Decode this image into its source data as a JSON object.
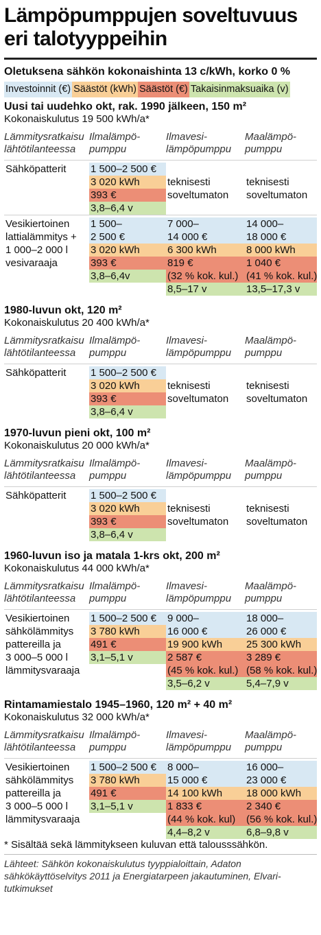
{
  "title": "Lämpöpumppujen soveltuvuus eri talotyyppeihin",
  "subtitle": "Oletuksena sähkön kokonaishinta 13 c/kWh, korko 0 %",
  "legend": [
    "Investoinnit (€)",
    "Säästöt (kWh)",
    "Säästöt (€)",
    "Takaisinmaksuaika (v)"
  ],
  "columns": [
    "Lämmitysratkaisu lähtötilanteessa",
    "Ilmalämpö-pumppu",
    "Ilmavesi-lämpöpumppu",
    "Maalämpö-pumppu"
  ],
  "colors": {
    "investment": "#d8e8f3",
    "savings_kwh": "#f9cf97",
    "savings_eur": "#ec8e76",
    "payback": "#cde4ae"
  },
  "sections": [
    {
      "title": "Uusi tai uudehko okt, rak. 1990 jälkeen, 150 m²",
      "consumption": "Kokonaiskulutus 19 500 kWh/a*",
      "rows": [
        {
          "heating": [
            "Sähköpatterit"
          ],
          "ilp": [
            "1 500–2 500 €",
            "3 020 kWh",
            "393 €",
            "3,8–6,4 v"
          ],
          "ivlp": [
            "",
            "teknisesti",
            "soveltumaton",
            ""
          ],
          "mlp": [
            "",
            "teknisesti",
            "soveltumaton",
            ""
          ]
        },
        {
          "heating": [
            "Vesikiertoinen",
            "lattialämmitys +",
            "1 000–2 000 l",
            "vesivaraaja"
          ],
          "ilp": [
            "1 500–",
            "2 500 €",
            "3 020 kWh",
            "393 €",
            "3,8–6,4v",
            ""
          ],
          "ivlp": [
            "7 000–",
            "14 000 €",
            "6 300 kWh",
            "819 €",
            "(32 % kok. kul.)",
            "8,5–17 v"
          ],
          "mlp": [
            "14 000–",
            "18 000 €",
            "8 000 kWh",
            "1 040 €",
            "(41 % kok. kul.)",
            "13,5–17,3 v"
          ]
        }
      ]
    },
    {
      "title": "1980-luvun okt, 120 m²",
      "consumption": "Kokonaiskulutus 20 400 kWh/a*",
      "rows": [
        {
          "heating": [
            "Sähköpatterit"
          ],
          "ilp": [
            "1 500–2 500 €",
            "3 020 kWh",
            "393 €",
            "3,8–6,4 v"
          ],
          "ivlp": [
            "",
            "teknisesti",
            "soveltumaton",
            ""
          ],
          "mlp": [
            "",
            "teknisesti",
            "soveltumaton",
            ""
          ]
        }
      ]
    },
    {
      "title": "1970-luvun pieni okt, 100 m²",
      "consumption": "Kokonaiskulutus 20 000 kWh/a*",
      "rows": [
        {
          "heating": [
            "Sähköpatterit"
          ],
          "ilp": [
            "1 500–2 500 €",
            "3 020 kWh",
            "393 €",
            "3,8–6,4 v"
          ],
          "ivlp": [
            "",
            "teknisesti",
            "soveltumaton",
            ""
          ],
          "mlp": [
            "",
            "teknisesti",
            "soveltumaton",
            ""
          ]
        }
      ]
    },
    {
      "title": "1960-luvun iso ja matala 1-krs okt, 200 m²",
      "consumption": "Kokonaiskulutus 44 000 kWh/a*",
      "rows": [
        {
          "heating": [
            "Vesikiertoinen",
            "sähkölämmitys",
            "pattereilla ja",
            "3 000–5 000 l",
            "lämmitysvaraaja"
          ],
          "ilp": [
            "1 500–2 500 €",
            "3 780 kWh",
            "491 €",
            "3,1–5,1 v",
            "",
            ""
          ],
          "ivlp": [
            "9 000–",
            "16 000 €",
            "19 900 kWh",
            "2 587 €",
            "(45 % kok. kul.)",
            "3,5–6,2 v"
          ],
          "mlp": [
            "18 000–",
            "26 000 €",
            "25 300 kWh",
            "3 289 €",
            "(58 % kok. kul.)",
            "5,4–7,9 v"
          ]
        }
      ]
    },
    {
      "title": "Rintamamiestalo 1945–1960, 120 m² + 40 m²",
      "consumption": "Kokonaiskulutus 32 000 kWh/a*",
      "rows": [
        {
          "heating": [
            "Vesikiertoinen",
            "sähkölämmitys",
            "pattereilla ja",
            "3 000–5 000 l",
            "lämmitysvaraaja"
          ],
          "ilp": [
            "1 500–2 500 €",
            "3 780 kWh",
            "491 €",
            "3,1–5,1 v",
            "",
            ""
          ],
          "ivlp": [
            "8 000–",
            "15 000 €",
            "14 100 kWh",
            "1 833 €",
            "(44 % kok. kul)",
            "4,4–8,2 v"
          ],
          "mlp": [
            "16 000–",
            "23 000 €",
            "18 000 kWh",
            "2 340 €",
            "(56 % kok. kul.)",
            "6,8–9,8 v"
          ]
        }
      ]
    }
  ],
  "footnote": "* Sisältää sekä lämmitykseen kuluvan että talousssähkön.",
  "sources": "Lähteet: Sähkön kokonaiskulutus tyyppialoittain, Adaton sähkökäyttöselvitys 2011 ja Energiatarpeen jakautuminen, Elvari-tutkimukset"
}
